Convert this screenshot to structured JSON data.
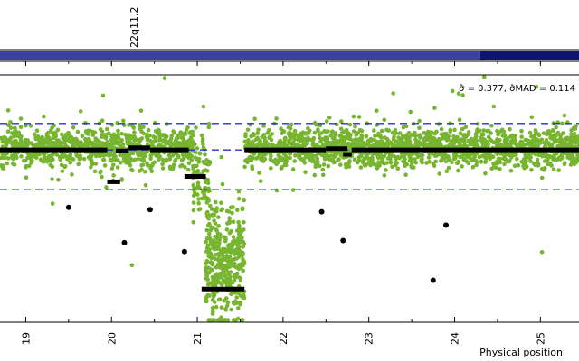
{
  "chart_data": {
    "type": "scatter",
    "title": "",
    "xlabel": "Physical position",
    "ylabel": "",
    "xlim": [
      18.7,
      25.45
    ],
    "ylim": [
      -3.9,
      1.7
    ],
    "grid": false,
    "cytoband_label": "22q11.2",
    "stats_text": "σ̂ = 0.377, σ̂MAD = 0.114",
    "x_ticks": [
      19,
      20,
      21,
      22,
      23,
      24,
      25
    ],
    "reference_lines": [
      {
        "y": 0.6,
        "style": "dashed",
        "color": "#2233cc"
      },
      {
        "y": 0.0,
        "style": "dashed",
        "color": "#2233cc"
      },
      {
        "y": -0.9,
        "style": "dashed",
        "color": "#2233cc"
      }
    ],
    "cytoband_segments": [
      {
        "start": 18.7,
        "end": 24.3,
        "color": "#3a3fa0"
      },
      {
        "start": 24.3,
        "end": 25.45,
        "color": "#0f1470"
      }
    ],
    "point_cloud_regions": [
      {
        "x_start": 18.7,
        "x_end": 20.95,
        "center": 0.05,
        "spread": 0.22,
        "n": 900
      },
      {
        "x_start": 20.95,
        "x_end": 21.15,
        "center": -0.6,
        "spread": 0.45,
        "n": 90
      },
      {
        "x_start": 21.1,
        "x_end": 21.55,
        "center": -2.5,
        "spread": 0.7,
        "n": 380
      },
      {
        "x_start": 21.55,
        "x_end": 25.45,
        "center": 0.05,
        "spread": 0.22,
        "n": 1600
      }
    ],
    "segments": [
      {
        "x_start": 18.7,
        "x_end": 19.95,
        "y": 0.0
      },
      {
        "x_start": 19.95,
        "x_end": 20.1,
        "y": -0.72
      },
      {
        "x_start": 20.05,
        "x_end": 20.2,
        "y": -0.02
      },
      {
        "x_start": 20.2,
        "x_end": 20.45,
        "y": 0.05
      },
      {
        "x_start": 20.45,
        "x_end": 20.9,
        "y": 0.0
      },
      {
        "x_start": 20.85,
        "x_end": 21.1,
        "y": -0.6
      },
      {
        "x_start": 21.05,
        "x_end": 21.55,
        "y": -3.15
      },
      {
        "x_start": 21.55,
        "x_end": 22.5,
        "y": 0.0
      },
      {
        "x_start": 22.5,
        "x_end": 22.75,
        "y": 0.03
      },
      {
        "x_start": 22.7,
        "x_end": 22.8,
        "y": -0.1
      },
      {
        "x_start": 22.8,
        "x_end": 25.45,
        "y": 0.0
      }
    ],
    "outlier_points": [
      {
        "x": 19.5,
        "y": -1.3
      },
      {
        "x": 20.15,
        "y": -2.1
      },
      {
        "x": 20.45,
        "y": -1.35
      },
      {
        "x": 20.85,
        "y": -2.3
      },
      {
        "x": 22.45,
        "y": -1.4
      },
      {
        "x": 22.7,
        "y": -2.05
      },
      {
        "x": 23.75,
        "y": -2.95
      },
      {
        "x": 23.9,
        "y": -1.7
      }
    ],
    "colors": {
      "points": "#77b531",
      "segments": "#000000",
      "reference": "#2233cc"
    }
  }
}
